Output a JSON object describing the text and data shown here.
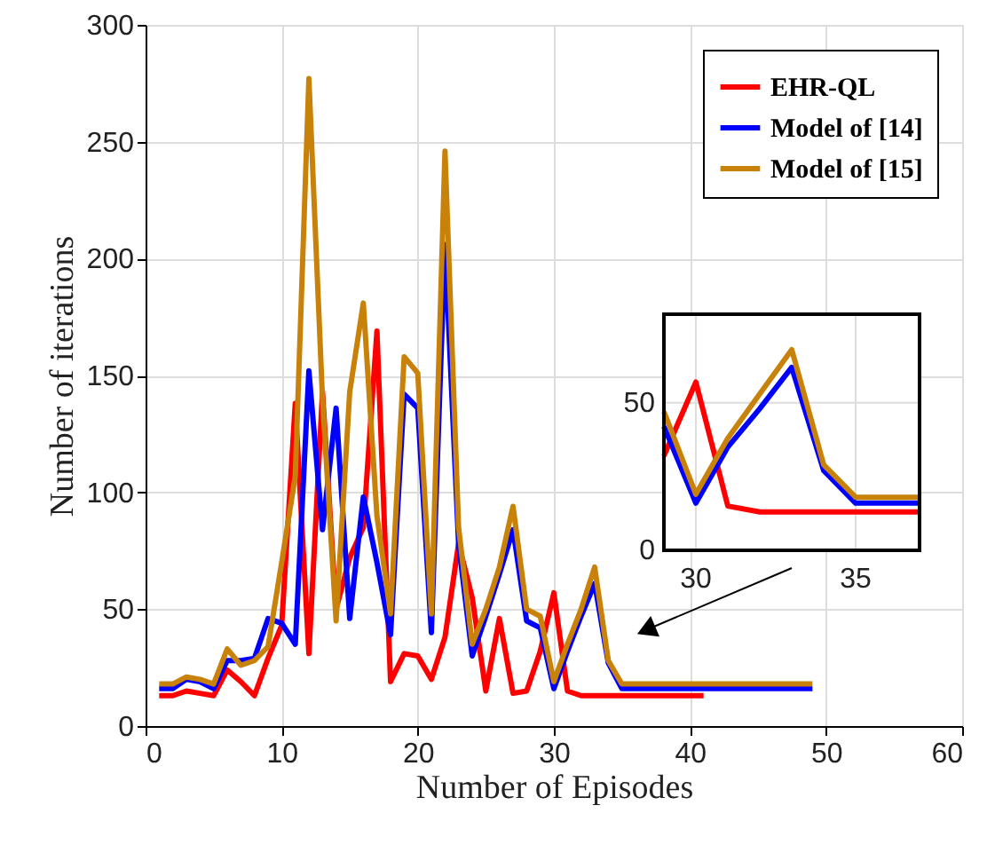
{
  "chart_data": [
    {
      "type": "line",
      "xlabel": "Number of Episodes",
      "ylabel": "Number of iterations",
      "xlim": [
        0,
        60
      ],
      "ylim": [
        0,
        300
      ],
      "xticks": [
        0,
        10,
        20,
        30,
        40,
        50,
        60
      ],
      "yticks": [
        0,
        50,
        100,
        150,
        200,
        250,
        300
      ],
      "grid": true,
      "legend": "top right",
      "series": [
        {
          "name": "EHR-QL",
          "color": "#ff0000",
          "x": [
            1,
            2,
            3,
            4,
            5,
            6,
            7,
            8,
            9,
            10,
            11,
            12,
            13,
            14,
            15,
            16,
            17,
            18,
            19,
            20,
            21,
            22,
            23,
            24,
            25,
            26,
            27,
            28,
            29,
            30,
            31,
            32,
            33,
            34,
            35,
            36,
            37,
            38,
            39,
            40,
            41
          ],
          "values": [
            13,
            13,
            15,
            14,
            13,
            24,
            19,
            13,
            29,
            43,
            138,
            31,
            143,
            50,
            72,
            85,
            169,
            19,
            31,
            30,
            20,
            38,
            78,
            55,
            15,
            46,
            14,
            15,
            32,
            57,
            15,
            13,
            13,
            13,
            13,
            13,
            13,
            13,
            13,
            13,
            13
          ]
        },
        {
          "name": "Model of [14]",
          "color": "#0000ff",
          "x": [
            1,
            2,
            3,
            4,
            5,
            6,
            7,
            8,
            9,
            10,
            11,
            12,
            13,
            14,
            15,
            16,
            17,
            18,
            19,
            20,
            21,
            22,
            23,
            24,
            25,
            26,
            27,
            28,
            29,
            30,
            31,
            32,
            33,
            34,
            35,
            36,
            37,
            38,
            39,
            40,
            41,
            42,
            43,
            44,
            45,
            46,
            47,
            48,
            49
          ],
          "values": [
            16,
            16,
            20,
            19,
            16,
            28,
            28,
            29,
            46,
            44,
            35,
            152,
            84,
            136,
            46,
            98,
            70,
            39,
            142,
            136,
            40,
            206,
            78,
            30,
            47,
            65,
            84,
            45,
            42,
            16,
            32,
            47,
            61,
            27,
            16,
            16,
            16,
            16,
            16,
            16,
            16,
            16,
            16,
            16,
            16,
            16,
            16,
            16,
            16
          ]
        },
        {
          "name": "Model of [15]",
          "color": "#c8820a",
          "x": [
            1,
            2,
            3,
            4,
            5,
            6,
            7,
            8,
            9,
            10,
            11,
            12,
            13,
            14,
            15,
            16,
            17,
            18,
            19,
            20,
            21,
            22,
            23,
            24,
            25,
            26,
            27,
            28,
            29,
            30,
            31,
            32,
            33,
            34,
            35,
            36,
            37,
            38,
            39,
            40,
            41,
            42,
            43,
            44,
            45,
            46,
            47,
            48,
            49
          ],
          "values": [
            18,
            18,
            21,
            20,
            18,
            33,
            26,
            28,
            34,
            70,
            107,
            277,
            140,
            45,
            143,
            181,
            90,
            48,
            158,
            151,
            48,
            246,
            85,
            35,
            50,
            68,
            94,
            50,
            47,
            19,
            35,
            50,
            68,
            28,
            18,
            18,
            18,
            18,
            18,
            18,
            18,
            18,
            18,
            18,
            18,
            18,
            18,
            18,
            18
          ]
        }
      ]
    },
    {
      "type": "line",
      "xlim": [
        29,
        37
      ],
      "ylim": [
        0,
        80
      ],
      "xticks": [
        30,
        35
      ],
      "yticks": [
        0,
        50
      ],
      "grid": true,
      "series": [
        {
          "color": "#ff0000",
          "x": [
            29,
            30,
            31,
            32,
            33,
            34,
            35,
            36,
            37
          ],
          "values": [
            32,
            57,
            15,
            13,
            13,
            13,
            13,
            13,
            13
          ]
        },
        {
          "color": "#0000ff",
          "x": [
            29,
            30,
            31,
            32,
            33,
            34,
            35,
            36,
            37
          ],
          "values": [
            42,
            16,
            35,
            48,
            62,
            27,
            16,
            16,
            16
          ]
        },
        {
          "color": "#c8820a",
          "x": [
            29,
            30,
            31,
            32,
            33,
            34,
            35,
            36,
            37
          ],
          "values": [
            47,
            19,
            38,
            53,
            68,
            29,
            18,
            18,
            18
          ]
        }
      ]
    }
  ]
}
